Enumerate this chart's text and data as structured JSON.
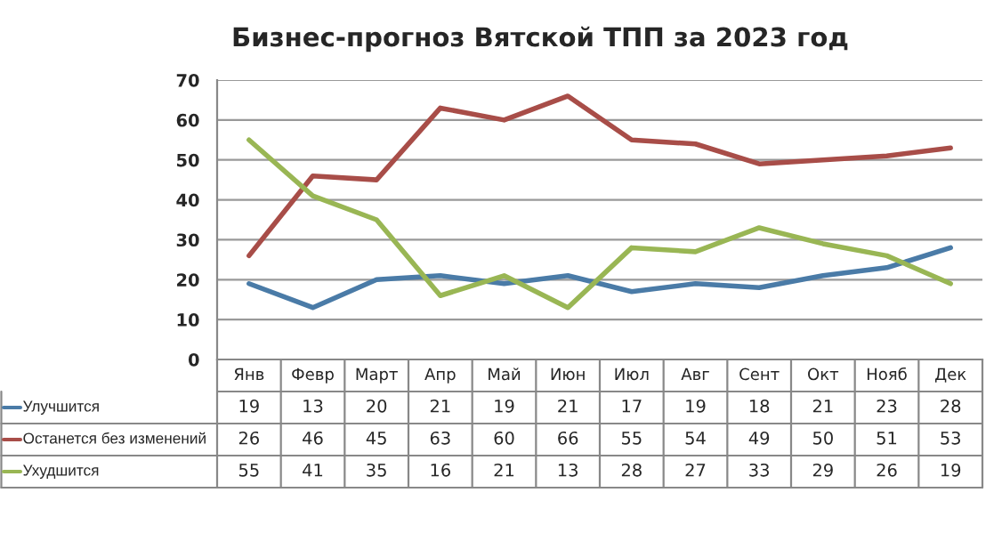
{
  "chart_data": {
    "type": "line",
    "title": "Бизнес-прогноз Вятской ТПП за 2023 год",
    "categories": [
      "Янв",
      "Февр",
      "Март",
      "Апр",
      "Май",
      "Июн",
      "Июл",
      "Авг",
      "Сент",
      "Окт",
      "Нояб",
      "Дек"
    ],
    "series": [
      {
        "name": "Улучшится",
        "color": "#4a7ba7",
        "values": [
          19,
          13,
          20,
          21,
          19,
          21,
          17,
          19,
          18,
          21,
          23,
          28
        ]
      },
      {
        "name": "Останется без изменений",
        "color": "#a84d48",
        "values": [
          26,
          46,
          45,
          63,
          60,
          66,
          55,
          54,
          49,
          50,
          51,
          53
        ]
      },
      {
        "name": "Ухудшится",
        "color": "#99b654",
        "values": [
          55,
          41,
          35,
          16,
          21,
          13,
          28,
          27,
          33,
          29,
          26,
          19
        ]
      }
    ],
    "ylim": [
      0,
      70
    ],
    "yticks": [
      0,
      10,
      20,
      30,
      40,
      50,
      60,
      70
    ],
    "grid": "y",
    "legend": "bottom",
    "data_labels": true,
    "marker": "none",
    "line_style": "solid"
  }
}
